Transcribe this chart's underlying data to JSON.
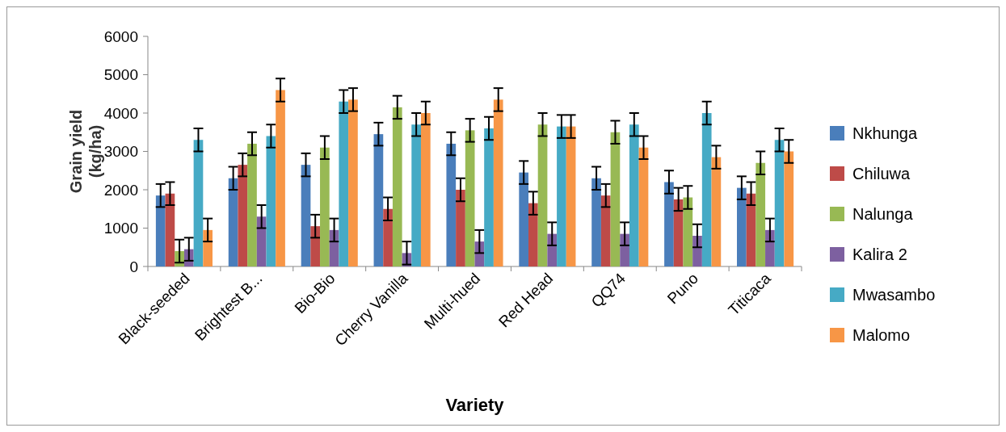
{
  "chart_data": {
    "type": "bar",
    "xlabel": "Variety",
    "ylabel": "Grain yield (kg/ha)",
    "categories": [
      "Black-seeded",
      "Brightest B...",
      "Bio-Bio",
      "Cherry Vanilla",
      "Multi-hued",
      "Red Head",
      "QQ74",
      "Puno",
      "Titicaca"
    ],
    "ylim": [
      0,
      6000
    ],
    "yticks": [
      0,
      1000,
      2000,
      3000,
      4000,
      5000,
      6000
    ],
    "grid": false,
    "legend": "right",
    "series": [
      {
        "name": "Nkhunga",
        "color": "#4a7ebb",
        "values": [
          1850,
          2300,
          2650,
          3450,
          3200,
          2450,
          2300,
          2200,
          2050
        ],
        "errors": [
          300,
          300,
          300,
          300,
          300,
          300,
          300,
          300,
          300
        ]
      },
      {
        "name": "Chiluwa",
        "color": "#be4b48",
        "values": [
          1900,
          2650,
          1050,
          1500,
          2000,
          1650,
          1850,
          1750,
          1900
        ],
        "errors": [
          300,
          300,
          300,
          300,
          300,
          300,
          300,
          300,
          300
        ]
      },
      {
        "name": "Nalunga",
        "color": "#98b954",
        "values": [
          400,
          3200,
          3100,
          4150,
          3550,
          3700,
          3500,
          1800,
          2700
        ],
        "errors": [
          300,
          300,
          300,
          300,
          300,
          300,
          300,
          300,
          300
        ]
      },
      {
        "name": "Kalira 2",
        "color": "#7d60a0",
        "values": [
          450,
          1300,
          950,
          350,
          650,
          850,
          850,
          800,
          950
        ],
        "errors": [
          300,
          300,
          300,
          300,
          300,
          300,
          300,
          300,
          300
        ]
      },
      {
        "name": "Mwasambo",
        "color": "#46aac5",
        "values": [
          3300,
          3400,
          4300,
          3700,
          3600,
          3650,
          3700,
          4000,
          3300
        ],
        "errors": [
          300,
          300,
          300,
          300,
          300,
          300,
          300,
          300,
          300
        ]
      },
      {
        "name": "Malomo",
        "color": "#f79646",
        "values": [
          950,
          4600,
          4350,
          4000,
          4350,
          3650,
          3100,
          2850,
          3000
        ],
        "errors": [
          300,
          300,
          300,
          300,
          300,
          300,
          300,
          300,
          300
        ]
      }
    ]
  }
}
